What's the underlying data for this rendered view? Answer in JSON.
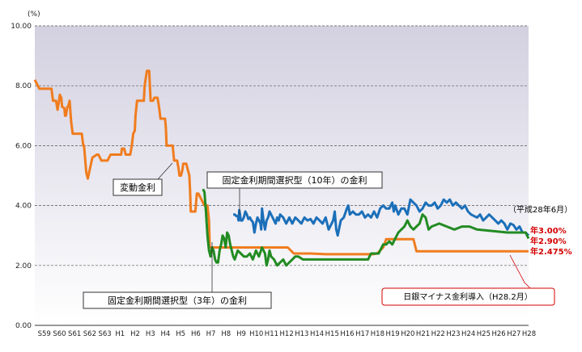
{
  "chart_data": {
    "type": "line",
    "title": "",
    "ylabel": "(%)",
    "xlabel": "",
    "ylim": [
      0,
      10
    ],
    "yticks": [
      "0.00",
      "2.00",
      "4.00",
      "6.00",
      "8.00",
      "10.00"
    ],
    "ytick_values": [
      0,
      2,
      4,
      6,
      8,
      10
    ],
    "xticks": [
      "S59",
      "S60",
      "S61",
      "S62",
      "S63",
      "H1",
      "H2",
      "H3",
      "H4",
      "H5",
      "H6",
      "H7",
      "H8",
      "H9",
      "H10",
      "H11",
      "H12",
      "H13",
      "H14",
      "H15",
      "H16",
      "H17",
      "H18",
      "H19",
      "H20",
      "H21",
      "H22",
      "H23",
      "H24",
      "H25",
      "H26",
      "H27",
      "H28"
    ],
    "xtick_values": [
      1984,
      1985,
      1986,
      1987,
      1988,
      1989,
      1990,
      1991,
      1992,
      1993,
      1994,
      1995,
      1996,
      1997,
      1998,
      1999,
      2000,
      2001,
      2002,
      2003,
      2004,
      2005,
      2006,
      2007,
      2008,
      2009,
      2010,
      2011,
      2012,
      2013,
      2014,
      2015,
      2016
    ],
    "grid": "dashed horizontal",
    "series": [
      {
        "name": "変動金利",
        "color": "#f07c1e",
        "x": [
          1983.8,
          1984.1,
          1984.3,
          1984.5,
          1984.9,
          1985.0,
          1985.2,
          1985.3,
          1985.4,
          1985.45,
          1985.55,
          1985.6,
          1985.75,
          1985.8,
          1985.85,
          1985.95,
          1986.0,
          1986.1,
          1986.2,
          1986.3,
          1986.5,
          1986.6,
          1986.9,
          1987.0,
          1987.05,
          1987.2,
          1987.3,
          1987.6,
          1987.9,
          1988.0,
          1988.2,
          1988.3,
          1988.6,
          1988.8,
          1989.0,
          1989.1,
          1989.3,
          1989.5,
          1989.55,
          1989.6,
          1989.7,
          1989.8,
          1990.0,
          1990.1,
          1990.2,
          1990.3,
          1990.4,
          1990.45,
          1990.55,
          1990.65,
          1990.75,
          1990.8,
          1990.9,
          1991.0,
          1991.05,
          1991.2,
          1991.3,
          1991.35,
          1991.4,
          1991.45,
          1991.55,
          1991.6,
          1991.7,
          1991.9,
          1992.0,
          1992.1,
          1992.25,
          1992.4,
          1992.45,
          1992.5,
          1992.55,
          1992.6,
          1992.75,
          1992.9,
          1993.0,
          1993.1,
          1993.15,
          1993.2,
          1993.3,
          1993.35,
          1993.45,
          1993.55,
          1993.6,
          1993.8,
          1994.0,
          1994.05,
          1994.1,
          1994.3,
          1994.4,
          1994.5,
          1994.6,
          1995.0,
          1995.1,
          1995.2,
          1995.3,
          1995.35,
          1995.7,
          1996.0,
          1996.5,
          1997.0,
          1998.0,
          1999.0,
          2000.0,
          2000.5,
          2000.9,
          2001.0,
          2001.1,
          2002.0,
          2003.0,
          2004.0,
          2005.0,
          2005.6,
          2006.0,
          2006.1,
          2006.4,
          2006.8,
          2007.0,
          2007.5,
          2008.0,
          2008.4,
          2008.6,
          2008.8,
          2009.0,
          2010.0,
          2011.0,
          2012.0,
          2013.0,
          2014.0,
          2015.0,
          2016.4
        ],
        "y": [
          8.2,
          7.9,
          7.9,
          7.9,
          7.9,
          7.5,
          7.5,
          7.2,
          7.5,
          7.7,
          7.6,
          7.3,
          7.25,
          7.0,
          7.0,
          7.3,
          7.3,
          7.5,
          6.8,
          6.4,
          6.4,
          6.4,
          6.4,
          6.0,
          6.0,
          5.1,
          4.9,
          5.6,
          5.7,
          5.7,
          5.5,
          5.5,
          5.5,
          5.7,
          5.7,
          5.7,
          5.7,
          5.7,
          5.9,
          5.9,
          5.9,
          5.7,
          5.7,
          5.7,
          6.0,
          6.4,
          6.5,
          7.0,
          7.5,
          7.5,
          7.5,
          7.5,
          7.5,
          7.5,
          8.0,
          8.5,
          8.5,
          8.5,
          8.0,
          7.5,
          7.5,
          7.5,
          7.6,
          7.6,
          7.3,
          6.9,
          6.9,
          6.9,
          6.6,
          6.0,
          6.0,
          6.0,
          6.0,
          6.0,
          5.5,
          5.5,
          5.5,
          5.5,
          5.2,
          5.0,
          5.0,
          5.2,
          5.4,
          5.4,
          5.0,
          4.5,
          3.8,
          3.8,
          3.8,
          4.4,
          4.4,
          4.0,
          4.0,
          4.0,
          3.5,
          2.6,
          2.6,
          2.6,
          2.6,
          2.6,
          2.6,
          2.6,
          2.6,
          2.6,
          2.4,
          2.4,
          2.4,
          2.4,
          2.375,
          2.375,
          2.375,
          2.375,
          2.375,
          2.375,
          2.4,
          2.6,
          2.875,
          2.875,
          2.875,
          2.875,
          2.875,
          2.875,
          2.475,
          2.475,
          2.475,
          2.475,
          2.475,
          2.475,
          2.475,
          2.475
        ]
      },
      {
        "name": "固定金利期間選択型（10年）の金利",
        "color": "#1b6fb9",
        "x": [
          1996.9,
          1997.0,
          1997.1,
          1997.2,
          1997.25,
          1997.3,
          1997.35,
          1997.4,
          1997.5,
          1997.6,
          1997.7,
          1997.8,
          1997.9,
          1998.0,
          1998.1,
          1998.2,
          1998.3,
          1998.4,
          1998.5,
          1998.6,
          1998.7,
          1998.75,
          1998.8,
          1998.9,
          1999.0,
          1999.1,
          1999.2,
          1999.3,
          1999.4,
          1999.5,
          1999.6,
          1999.7,
          1999.8,
          1999.9,
          2000.0,
          2000.2,
          2000.4,
          2000.6,
          2000.8,
          2001.0,
          2001.2,
          2001.4,
          2001.6,
          2001.8,
          2002.0,
          2002.2,
          2002.4,
          2002.6,
          2002.8,
          2003.0,
          2003.2,
          2003.4,
          2003.5,
          2003.6,
          2003.7,
          2003.8,
          2004.0,
          2004.2,
          2004.4,
          2004.5,
          2004.6,
          2004.8,
          2005.0,
          2005.2,
          2005.4,
          2005.6,
          2005.8,
          2006.0,
          2006.2,
          2006.4,
          2006.6,
          2006.8,
          2007.0,
          2007.2,
          2007.4,
          2007.5,
          2007.6,
          2007.8,
          2008.0,
          2008.2,
          2008.4,
          2008.6,
          2008.8,
          2009.0,
          2009.2,
          2009.4,
          2009.6,
          2009.8,
          2010.0,
          2010.2,
          2010.4,
          2010.6,
          2010.8,
          2011.0,
          2011.2,
          2011.4,
          2011.6,
          2011.8,
          2012.0,
          2012.2,
          2012.4,
          2012.6,
          2012.8,
          2013.0,
          2013.2,
          2013.4,
          2013.6,
          2013.8,
          2014.0,
          2014.2,
          2014.4,
          2014.6,
          2014.8,
          2015.0,
          2015.2,
          2015.4,
          2015.6,
          2015.8,
          2016.0,
          2016.2,
          2016.4
        ],
        "y": [
          3.7,
          3.7,
          3.65,
          3.65,
          3.5,
          3.85,
          3.7,
          3.5,
          3.5,
          3.6,
          3.8,
          3.7,
          3.55,
          3.6,
          3.5,
          3.45,
          3.1,
          3.4,
          3.6,
          3.5,
          3.4,
          3.2,
          3.9,
          3.5,
          3.2,
          3.5,
          3.6,
          3.8,
          3.7,
          3.6,
          3.5,
          3.4,
          3.6,
          3.5,
          3.7,
          3.6,
          3.4,
          3.6,
          3.4,
          3.6,
          3.5,
          3.4,
          3.6,
          3.5,
          3.55,
          3.4,
          3.6,
          3.5,
          3.4,
          3.6,
          3.2,
          3.4,
          3.5,
          3.8,
          3.2,
          3.0,
          3.5,
          3.6,
          3.9,
          4.0,
          3.7,
          3.8,
          3.7,
          3.7,
          3.8,
          3.6,
          3.7,
          3.6,
          3.8,
          3.6,
          3.9,
          4.0,
          3.9,
          3.9,
          4.1,
          3.8,
          4.0,
          3.7,
          3.9,
          3.9,
          3.7,
          4.2,
          4.1,
          4.0,
          3.8,
          3.9,
          4.1,
          4.0,
          4.0,
          4.1,
          3.9,
          4.0,
          4.2,
          4.1,
          4.2,
          4.0,
          4.1,
          4.0,
          3.9,
          4.0,
          3.8,
          3.7,
          3.65,
          3.6,
          3.7,
          3.5,
          3.6,
          3.7,
          3.6,
          3.5,
          3.4,
          3.5,
          3.4,
          3.2,
          3.4,
          3.35,
          3.2,
          3.3,
          3.1,
          3.1,
          3.0
        ]
      },
      {
        "name": "固定金利期間選択型（3年）の金利",
        "color": "#228b22",
        "x": [
          1994.9,
          1995.0,
          1995.1,
          1995.2,
          1995.3,
          1995.4,
          1995.5,
          1995.6,
          1995.7,
          1995.8,
          1995.9,
          1996.0,
          1996.1,
          1996.2,
          1996.3,
          1996.4,
          1996.5,
          1996.6,
          1996.7,
          1996.8,
          1996.9,
          1997.0,
          1997.2,
          1997.4,
          1997.6,
          1997.8,
          1998.0,
          1998.2,
          1998.4,
          1998.6,
          1998.8,
          1999.0,
          1999.1,
          1999.2,
          1999.3,
          1999.4,
          1999.6,
          1999.8,
          2000.0,
          2000.2,
          2000.4,
          2000.6,
          2000.8,
          2001.0,
          2001.2,
          2001.5,
          2002.0,
          2003.0,
          2004.0,
          2005.0,
          2005.5,
          2005.8,
          2006.0,
          2006.2,
          2006.5,
          2006.8,
          2007.0,
          2007.2,
          2007.4,
          2007.6,
          2007.8,
          2008.0,
          2008.2,
          2008.4,
          2008.6,
          2008.8,
          2009.0,
          2009.2,
          2009.4,
          2009.6,
          2009.8,
          2010.0,
          2010.5,
          2011.0,
          2011.5,
          2012.0,
          2012.5,
          2013.0,
          2014.0,
          2015.0,
          2016.2,
          2016.4
        ],
        "y": [
          4.55,
          4.45,
          3.8,
          3.0,
          2.5,
          2.3,
          2.6,
          2.5,
          2.2,
          2.1,
          2.1,
          2.5,
          2.7,
          3.0,
          2.9,
          2.6,
          3.1,
          3.0,
          2.7,
          2.5,
          2.3,
          2.2,
          2.5,
          2.4,
          2.3,
          2.3,
          2.4,
          2.2,
          2.5,
          2.3,
          2.6,
          2.4,
          2.0,
          2.2,
          2.5,
          2.3,
          2.2,
          2.0,
          2.1,
          2.2,
          2.0,
          2.1,
          2.2,
          2.3,
          2.3,
          2.2,
          2.2,
          2.2,
          2.2,
          2.2,
          2.2,
          2.2,
          2.4,
          2.4,
          2.4,
          2.7,
          2.7,
          2.8,
          2.7,
          2.9,
          3.1,
          3.2,
          3.3,
          3.5,
          3.3,
          3.2,
          3.3,
          3.4,
          3.7,
          3.6,
          3.2,
          3.3,
          3.4,
          3.3,
          3.2,
          3.3,
          3.3,
          3.2,
          3.15,
          3.1,
          3.1,
          2.9
        ]
      }
    ],
    "annotations": {
      "hensou": "変動金利",
      "kotei10": "固定金利期間選択型（10年）の金利",
      "kotei3": "固定金利期間選択型（3年）の金利",
      "date_note": "（平成28年6月）",
      "end_blue": "年3.00%",
      "end_green": "年2.90%",
      "end_orange": "年2.475%",
      "boj": "日銀マイナス金利導入（H28.2月）"
    },
    "colors": {
      "plot_bg_top": "#d3d0e0",
      "plot_bg_bottom": "#ffffff",
      "red": "#d40000"
    }
  }
}
